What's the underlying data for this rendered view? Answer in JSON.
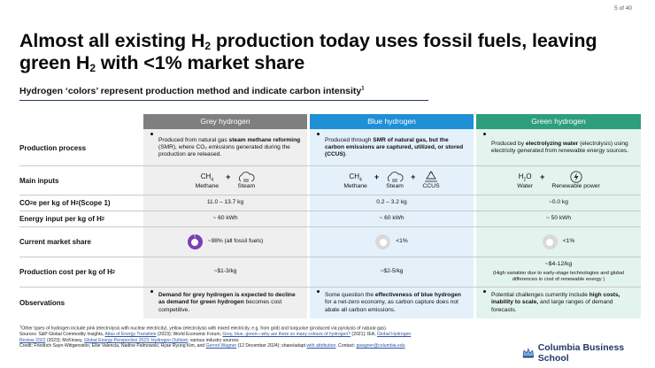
{
  "page_number": "5 of 40",
  "title": {
    "line1_a": "Almost all existing H",
    "line1_sub": "2",
    "line1_b": " production today uses fossil fuels, leaving",
    "line2_a": "green H",
    "line2_sub": "2",
    "line2_b": " with <1% market share"
  },
  "subtitle": {
    "text": "Hydrogen ‘colors’ represent production method and indicate carbon intensity",
    "sup": "1"
  },
  "colors": {
    "grey": "#7f7f7f",
    "blue": "#1f8fd6",
    "green": "#2e9e7c",
    "grey_bg": "#efefef",
    "blue_bg": "#e4f1fb",
    "green_bg": "#e3f3ed",
    "donut_fill": "#7a3fb8",
    "donut_empty": "#d9d9d9"
  },
  "columns": {
    "grey": "Grey hydrogen",
    "blue": "Blue hydrogen",
    "green": "Green hydrogen"
  },
  "rows": {
    "process": {
      "label": "Production process",
      "grey": {
        "pre": "Produced from natural gas ",
        "bold": "steam methane reforming",
        "post": " (SMR), where CO₂ emissions generated during the production are released."
      },
      "blue": {
        "pre": "Produced through ",
        "bold": "SMR of natural gas, but the carbon emissions are captured, utilized, or stored (CCUS)",
        "post": "."
      },
      "green": {
        "pre": "Produced by ",
        "bold": "electrolyzing water",
        "post": " (electrolysis) using electricity generated from renewable energy sources."
      }
    },
    "inputs": {
      "label": "Main inputs",
      "plus": "+",
      "ch4": "CH",
      "ch4_sub": "4",
      "h2o": "H",
      "h2o_sub": "2",
      "h2o_tail": "O",
      "methane": "Methane",
      "steam": "Steam",
      "ccus": "CCUS",
      "water": "Water",
      "renewable": "Renewable power",
      "icons": [
        "steam-icon",
        "recycle-icon",
        "lightning-icon"
      ]
    },
    "co2": {
      "label_a": "CO",
      "label_sub": "2",
      "label_b": "e per kg of H",
      "label_sub2": "2",
      "label_c": " (Scope 1)",
      "grey": "11.0 – 13.7 kg",
      "blue": "0.2 – 3.2 kg",
      "green": "~0.0 kg"
    },
    "energy": {
      "label_a": "Energy input per kg of H",
      "label_sub": "2",
      "grey": "~ 60 kWh",
      "blue": "~ 60 kWh",
      "green": "~ 50 kWh"
    },
    "share": {
      "label": "Current market share",
      "grey": "~98% (all fossil fuels)",
      "blue": "<1%",
      "green": "<1%",
      "grey_pct": 98,
      "blue_pct": 1,
      "green_pct": 1
    },
    "cost": {
      "label_a": "Production cost per kg of H",
      "label_sub": "2",
      "grey": "~$1-3/kg",
      "blue": "~$2-5/kg",
      "green": "~$4-12/kg",
      "green_note": "(High variation due to early-stage technologies and global differences in cost of renewable energy )"
    },
    "observations": {
      "label": "Observations",
      "grey": {
        "bold": "Demand for grey hydrogen is expected to decline as demand for green hydrogen",
        "post": " becomes cost competitive."
      },
      "blue": {
        "pre": "Some question the ",
        "bold": "effectiveness of blue hydrogen",
        "post": " for a net-zero economy, as carbon capture does not abate all carbon emissions."
      },
      "green": {
        "pre": "Potential challenges currently include ",
        "bold": "high costs, inability to scale,",
        "post": " and large ranges of demand forecasts."
      }
    }
  },
  "footnotes": {
    "l1": "Other types of hydrogen include pink (electrolysis with nuclear electricity), yellow (electrolysis with mixed electricity, e.g. from grid) and turquoise (produced via pyrolysis of natural gas).",
    "l2_a": "Sources: S&P Global Commodity Insights, ",
    "l2_link1": "Atlas of Energy Transition",
    "l2_b": " (2023); World Economic Forum, ",
    "l2_link2": "Grey, blue, green—why are there so many colours of hydrogen?",
    "l2_c": " (2021); IEA, ",
    "l2_link3": "Global Hydrogen",
    "l3_link": "Review 2022",
    "l3_a": " (2023); McKinsey, ",
    "l3_link2": "Global Energy Perspective 2023: Hydrogen Outlook",
    "l3_b": "; various industry sources",
    "l4_a": "Credit: Friedrich Sayn-Wittgenstein, Ellie Valencia, Nadine Palmowski, Hyae Ryung Kim, and ",
    "l4_link1": "Gernot Wagner",
    "l4_b": " (12 December 2024); share/adapt ",
    "l4_link2": "with attribution",
    "l4_c": ". Contact: ",
    "l4_link3": "gwagner@columbia.edu"
  },
  "logo_text": "Columbia Business School"
}
